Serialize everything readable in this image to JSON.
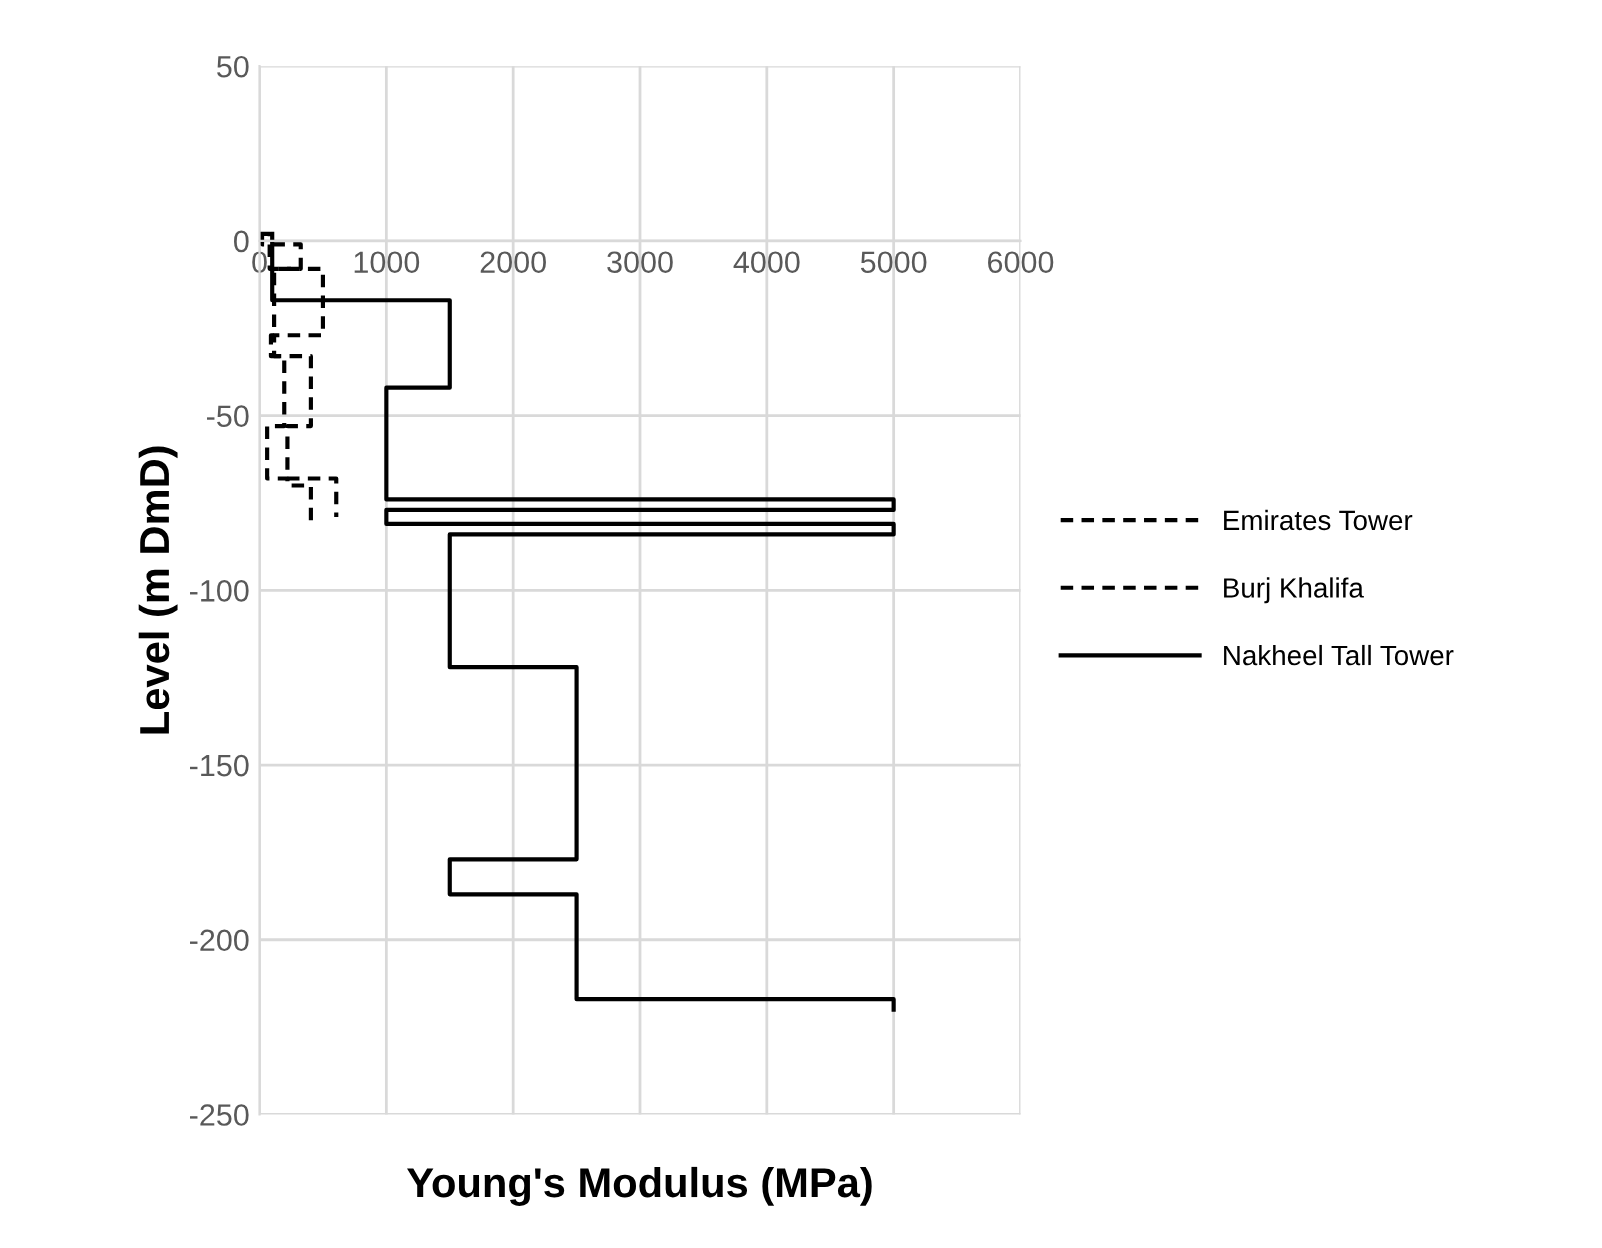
{
  "chart_data": {
    "type": "line",
    "xlabel": "Young's Modulus (MPa)",
    "ylabel": "Level (m DmD)",
    "xlim": [
      0,
      6000
    ],
    "xticks": [
      0,
      1000,
      2000,
      3000,
      4000,
      5000,
      6000
    ],
    "ylim": [
      -250,
      50
    ],
    "yticks": [
      -250,
      -200,
      -150,
      -100,
      -50,
      0,
      50
    ],
    "grid": true,
    "legend": "right",
    "marker": "none",
    "series": [
      {
        "name": "Emirates Tower",
        "color": "#000000",
        "line_style": "dashed",
        "x": [
          20,
          20,
          325,
          325,
          115,
          115,
          90,
          90,
          195,
          195,
          60,
          60,
          220,
          220,
          405,
          405
        ],
        "values": [
          2,
          -1,
          -1,
          -8,
          -8,
          -27,
          -27,
          -33,
          -33,
          -53,
          -53,
          -68,
          -68,
          -70,
          -70,
          -80
        ]
      },
      {
        "name": "Burj Khalifa",
        "color": "#000000",
        "line_style": "dashed",
        "x": [
          0,
          80,
          80,
          500,
          500,
          115,
          115,
          405,
          405,
          220,
          220,
          605,
          605
        ],
        "values": [
          2,
          2,
          -8,
          -8,
          -27,
          -27,
          -33,
          -33,
          -53,
          -53,
          -68,
          -68,
          -79
        ]
      },
      {
        "name": "Nakheel Tall Tower",
        "color": "#000000",
        "line_style": "solid",
        "x": [
          100,
          100,
          1500,
          1500,
          1000,
          1000,
          5000,
          5000,
          1000,
          1000,
          5000,
          5000,
          1500,
          1500,
          2500,
          2500,
          1500,
          1500,
          2500,
          2500,
          5000,
          5000
        ],
        "values": [
          2,
          -17,
          -17,
          -42,
          -42,
          -74,
          -74,
          -77,
          -77,
          -81,
          -81,
          -84,
          -84,
          -122,
          -122,
          -177,
          -177,
          -187,
          -187,
          -217,
          -217,
          -220
        ]
      }
    ]
  }
}
